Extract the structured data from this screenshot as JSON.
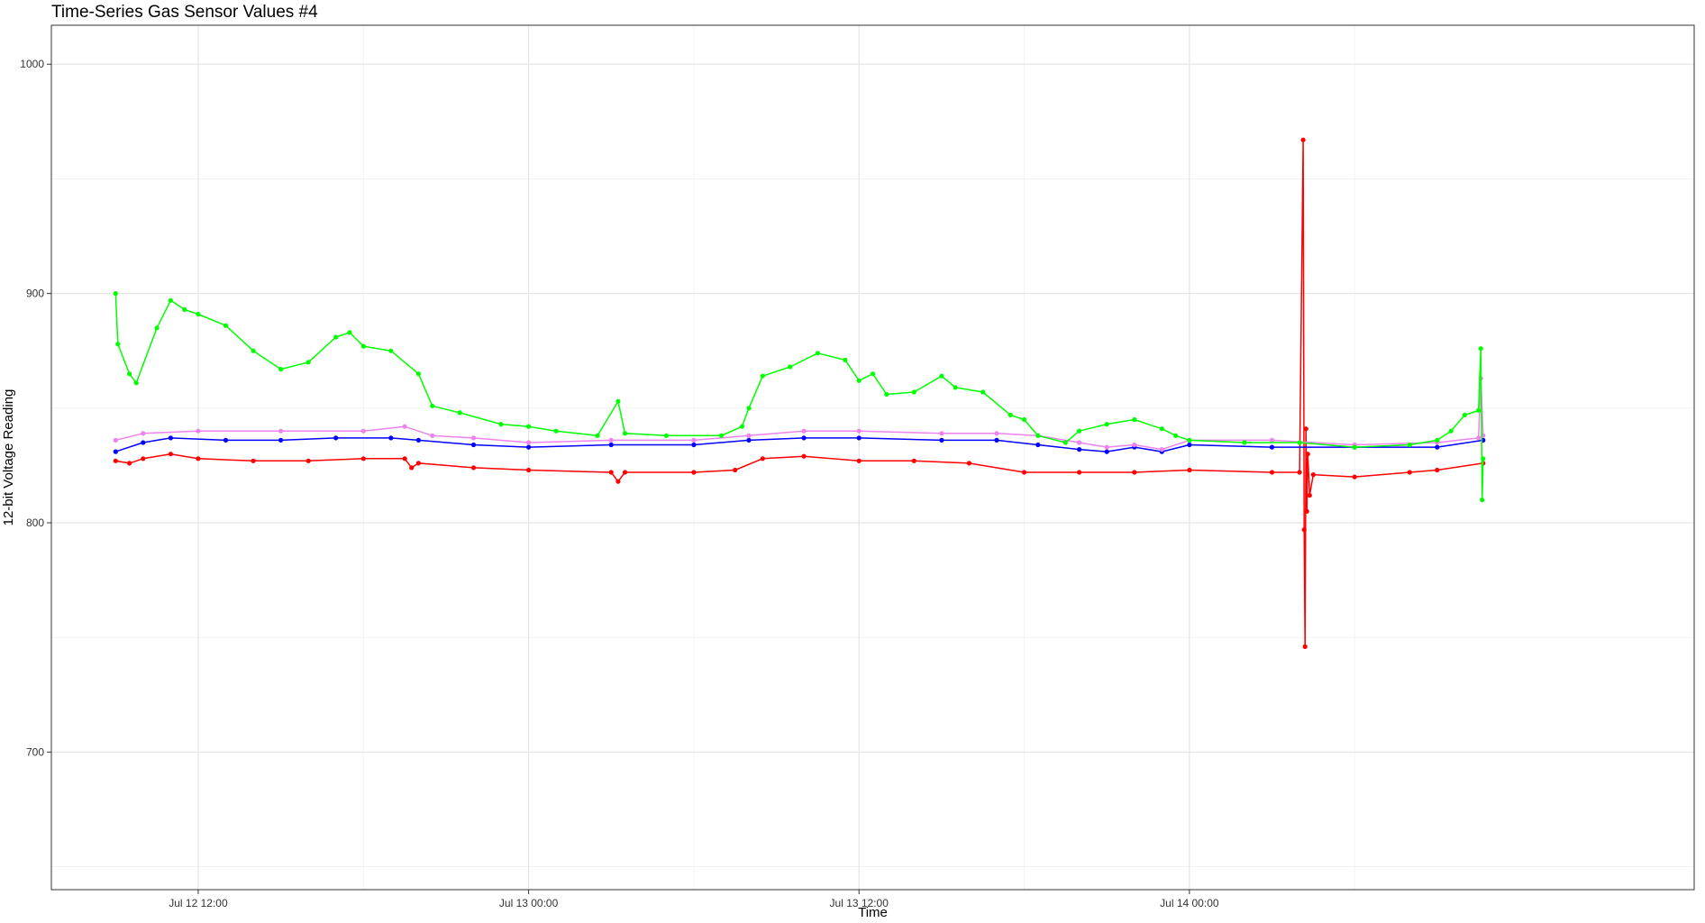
{
  "chart_data": {
    "type": "line",
    "title": "Time-Series Gas Sensor Values #4",
    "xlabel": "Time",
    "ylabel": "12-bit Voltage Reading",
    "xlim": [
      "2019-07-12 06:40",
      "2019-07-14 18:20"
    ],
    "ylim": [
      640,
      1017
    ],
    "x_ticks": [
      {
        "t": "2019-07-12 12:00",
        "label": "Jul 12 12:00"
      },
      {
        "t": "2019-07-13 00:00",
        "label": "Jul 13 00:00"
      },
      {
        "t": "2019-07-13 12:00",
        "label": "Jul 13 12:00"
      },
      {
        "t": "2019-07-14 00:00",
        "label": "Jul 14 00:00"
      }
    ],
    "x_minor_ticks": [
      "2019-07-12 18:00",
      "2019-07-13 06:00",
      "2019-07-13 18:00",
      "2019-07-14 06:00"
    ],
    "y_ticks": [
      700,
      800,
      900,
      1000
    ],
    "y_minor_ticks": [
      650,
      750,
      850,
      950
    ],
    "grid": true,
    "legend": "none",
    "series": [
      {
        "color": "#FF0000",
        "points": [
          [
            "2019-07-12 09:00",
            827
          ],
          [
            "2019-07-12 09:30",
            826
          ],
          [
            "2019-07-12 10:00",
            828
          ],
          [
            "2019-07-12 11:00",
            830
          ],
          [
            "2019-07-12 12:00",
            828
          ],
          [
            "2019-07-12 14:00",
            827
          ],
          [
            "2019-07-12 16:00",
            827
          ],
          [
            "2019-07-12 18:00",
            828
          ],
          [
            "2019-07-12 19:30",
            828
          ],
          [
            "2019-07-12 19:45",
            824
          ],
          [
            "2019-07-12 20:00",
            826
          ],
          [
            "2019-07-12 22:00",
            824
          ],
          [
            "2019-07-13 00:00",
            823
          ],
          [
            "2019-07-13 03:00",
            822
          ],
          [
            "2019-07-13 03:15",
            818
          ],
          [
            "2019-07-13 03:30",
            822
          ],
          [
            "2019-07-13 06:00",
            822
          ],
          [
            "2019-07-13 07:30",
            823
          ],
          [
            "2019-07-13 08:30",
            828
          ],
          [
            "2019-07-13 10:00",
            829
          ],
          [
            "2019-07-13 12:00",
            827
          ],
          [
            "2019-07-13 14:00",
            827
          ],
          [
            "2019-07-13 16:00",
            826
          ],
          [
            "2019-07-13 18:00",
            822
          ],
          [
            "2019-07-13 20:00",
            822
          ],
          [
            "2019-07-13 22:00",
            822
          ],
          [
            "2019-07-14 00:00",
            823
          ],
          [
            "2019-07-14 03:00",
            822
          ],
          [
            "2019-07-14 04:00",
            822
          ],
          [
            "2019-07-14 04:08",
            967
          ],
          [
            "2019-07-14 04:10",
            797
          ],
          [
            "2019-07-14 04:12",
            746
          ],
          [
            "2019-07-14 04:14",
            841
          ],
          [
            "2019-07-14 04:16",
            805
          ],
          [
            "2019-07-14 04:18",
            830
          ],
          [
            "2019-07-14 04:22",
            812
          ],
          [
            "2019-07-14 04:30",
            821
          ],
          [
            "2019-07-14 06:00",
            820
          ],
          [
            "2019-07-14 08:00",
            822
          ],
          [
            "2019-07-14 09:00",
            823
          ],
          [
            "2019-07-14 10:40",
            826
          ]
        ]
      },
      {
        "color": "#0000FF",
        "points": [
          [
            "2019-07-12 09:00",
            831
          ],
          [
            "2019-07-12 10:00",
            835
          ],
          [
            "2019-07-12 11:00",
            837
          ],
          [
            "2019-07-12 13:00",
            836
          ],
          [
            "2019-07-12 15:00",
            836
          ],
          [
            "2019-07-12 17:00",
            837
          ],
          [
            "2019-07-12 19:00",
            837
          ],
          [
            "2019-07-12 20:00",
            836
          ],
          [
            "2019-07-12 22:00",
            834
          ],
          [
            "2019-07-13 00:00",
            833
          ],
          [
            "2019-07-13 03:00",
            834
          ],
          [
            "2019-07-13 06:00",
            834
          ],
          [
            "2019-07-13 08:00",
            836
          ],
          [
            "2019-07-13 10:00",
            837
          ],
          [
            "2019-07-13 12:00",
            837
          ],
          [
            "2019-07-13 15:00",
            836
          ],
          [
            "2019-07-13 17:00",
            836
          ],
          [
            "2019-07-13 18:30",
            834
          ],
          [
            "2019-07-13 20:00",
            832
          ],
          [
            "2019-07-13 21:00",
            831
          ],
          [
            "2019-07-13 22:00",
            833
          ],
          [
            "2019-07-13 23:00",
            831
          ],
          [
            "2019-07-14 00:00",
            834
          ],
          [
            "2019-07-14 03:00",
            833
          ],
          [
            "2019-07-14 06:00",
            833
          ],
          [
            "2019-07-14 09:00",
            833
          ],
          [
            "2019-07-14 10:40",
            836
          ]
        ]
      },
      {
        "color": "#EE82EE",
        "points": [
          [
            "2019-07-12 09:00",
            836
          ],
          [
            "2019-07-12 10:00",
            839
          ],
          [
            "2019-07-12 12:00",
            840
          ],
          [
            "2019-07-12 15:00",
            840
          ],
          [
            "2019-07-12 18:00",
            840
          ],
          [
            "2019-07-12 19:30",
            842
          ],
          [
            "2019-07-12 20:30",
            838
          ],
          [
            "2019-07-12 22:00",
            837
          ],
          [
            "2019-07-13 00:00",
            835
          ],
          [
            "2019-07-13 03:00",
            836
          ],
          [
            "2019-07-13 06:00",
            836
          ],
          [
            "2019-07-13 08:00",
            838
          ],
          [
            "2019-07-13 10:00",
            840
          ],
          [
            "2019-07-13 12:00",
            840
          ],
          [
            "2019-07-13 15:00",
            839
          ],
          [
            "2019-07-13 17:00",
            839
          ],
          [
            "2019-07-13 18:30",
            838
          ],
          [
            "2019-07-13 20:00",
            835
          ],
          [
            "2019-07-13 21:00",
            833
          ],
          [
            "2019-07-13 22:00",
            834
          ],
          [
            "2019-07-13 23:00",
            832
          ],
          [
            "2019-07-14 00:00",
            836
          ],
          [
            "2019-07-14 03:00",
            836
          ],
          [
            "2019-07-14 06:00",
            834
          ],
          [
            "2019-07-14 09:00",
            835
          ],
          [
            "2019-07-14 10:30",
            837
          ],
          [
            "2019-07-14 10:35",
            863
          ],
          [
            "2019-07-14 10:40",
            838
          ]
        ]
      },
      {
        "color": "#00FF00",
        "points": [
          [
            "2019-07-12 09:00",
            900
          ],
          [
            "2019-07-12 09:05",
            878
          ],
          [
            "2019-07-12 09:30",
            865
          ],
          [
            "2019-07-12 09:45",
            861
          ],
          [
            "2019-07-12 10:30",
            885
          ],
          [
            "2019-07-12 11:00",
            897
          ],
          [
            "2019-07-12 11:30",
            893
          ],
          [
            "2019-07-12 12:00",
            891
          ],
          [
            "2019-07-12 13:00",
            886
          ],
          [
            "2019-07-12 14:00",
            875
          ],
          [
            "2019-07-12 15:00",
            867
          ],
          [
            "2019-07-12 16:00",
            870
          ],
          [
            "2019-07-12 17:00",
            881
          ],
          [
            "2019-07-12 17:30",
            883
          ],
          [
            "2019-07-12 18:00",
            877
          ],
          [
            "2019-07-12 19:00",
            875
          ],
          [
            "2019-07-12 20:00",
            865
          ],
          [
            "2019-07-12 20:30",
            851
          ],
          [
            "2019-07-12 21:30",
            848
          ],
          [
            "2019-07-12 23:00",
            843
          ],
          [
            "2019-07-13 00:00",
            842
          ],
          [
            "2019-07-13 01:00",
            840
          ],
          [
            "2019-07-13 02:30",
            838
          ],
          [
            "2019-07-13 03:15",
            853
          ],
          [
            "2019-07-13 03:30",
            839
          ],
          [
            "2019-07-13 05:00",
            838
          ],
          [
            "2019-07-13 07:00",
            838
          ],
          [
            "2019-07-13 07:45",
            842
          ],
          [
            "2019-07-13 08:00",
            850
          ],
          [
            "2019-07-13 08:30",
            864
          ],
          [
            "2019-07-13 09:30",
            868
          ],
          [
            "2019-07-13 10:30",
            874
          ],
          [
            "2019-07-13 11:30",
            871
          ],
          [
            "2019-07-13 12:00",
            862
          ],
          [
            "2019-07-13 12:30",
            865
          ],
          [
            "2019-07-13 13:00",
            856
          ],
          [
            "2019-07-13 14:00",
            857
          ],
          [
            "2019-07-13 15:00",
            864
          ],
          [
            "2019-07-13 15:30",
            859
          ],
          [
            "2019-07-13 16:30",
            857
          ],
          [
            "2019-07-13 17:30",
            847
          ],
          [
            "2019-07-13 18:00",
            845
          ],
          [
            "2019-07-13 18:30",
            838
          ],
          [
            "2019-07-13 19:30",
            835
          ],
          [
            "2019-07-13 20:00",
            840
          ],
          [
            "2019-07-13 21:00",
            843
          ],
          [
            "2019-07-13 22:00",
            845
          ],
          [
            "2019-07-13 23:00",
            841
          ],
          [
            "2019-07-13 23:30",
            838
          ],
          [
            "2019-07-14 00:00",
            836
          ],
          [
            "2019-07-14 02:00",
            835
          ],
          [
            "2019-07-14 04:00",
            835
          ],
          [
            "2019-07-14 06:00",
            833
          ],
          [
            "2019-07-14 08:00",
            834
          ],
          [
            "2019-07-14 09:00",
            836
          ],
          [
            "2019-07-14 09:30",
            840
          ],
          [
            "2019-07-14 10:00",
            847
          ],
          [
            "2019-07-14 10:30",
            849
          ],
          [
            "2019-07-14 10:35",
            876
          ],
          [
            "2019-07-14 10:38",
            810
          ],
          [
            "2019-07-14 10:40",
            828
          ]
        ]
      }
    ]
  }
}
